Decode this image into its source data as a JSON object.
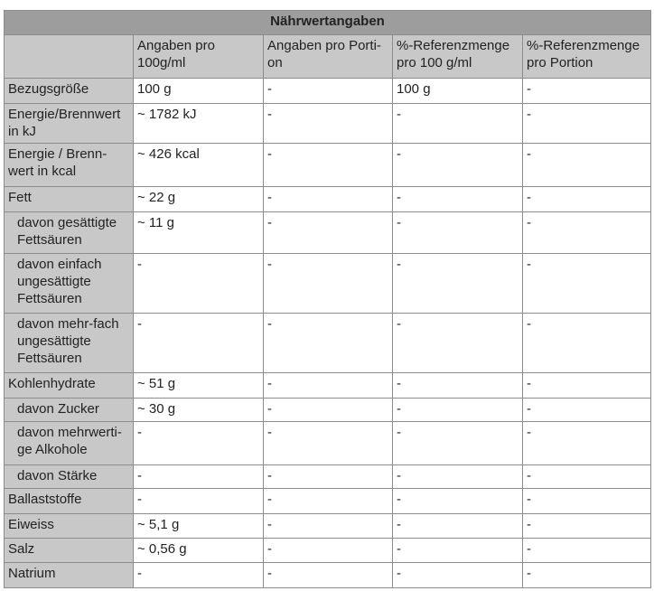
{
  "title": "Nährwertangaben",
  "columns": [
    "",
    "Angaben pro 100g/ml",
    "Angaben pro Porti-on",
    "%-Referenzmenge pro 100 g/ml",
    "%-Referenzmenge pro Portion"
  ],
  "rows": [
    {
      "label": "Bezugsgröße",
      "sub": false,
      "values": [
        "100 g",
        "-",
        "100 g",
        "-"
      ]
    },
    {
      "label": "Energie/Brennwert in kJ",
      "sub": false,
      "values": [
        "~ 1782 kJ",
        "-",
        "-",
        "-"
      ]
    },
    {
      "label": "Energie / Brenn-wert in kcal",
      "sub": false,
      "values": [
        "~ 426 kcal",
        "-",
        "-",
        "-"
      ]
    },
    {
      "label": "Fett",
      "sub": false,
      "values": [
        "~ 22 g",
        "-",
        "-",
        "-"
      ]
    },
    {
      "label": "davon gesättigte Fettsäuren",
      "sub": true,
      "values": [
        "~ 11 g",
        "-",
        "-",
        "-"
      ]
    },
    {
      "label": "davon einfach ungesättigte Fettsäuren",
      "sub": true,
      "values": [
        "-",
        "-",
        "-",
        "-"
      ]
    },
    {
      "label": "davon mehr-fach ungesättigte Fettsäuren",
      "sub": true,
      "values": [
        "-",
        "-",
        "-",
        "-"
      ]
    },
    {
      "label": "Kohlenhydrate",
      "sub": false,
      "values": [
        "~ 51 g",
        "-",
        "-",
        "-"
      ]
    },
    {
      "label": "davon Zucker",
      "sub": true,
      "values": [
        "~ 30 g",
        "-",
        "-",
        "-"
      ]
    },
    {
      "label": "davon mehrwerti-ge Alkohole",
      "sub": true,
      "values": [
        "-",
        "-",
        "-",
        "-"
      ]
    },
    {
      "label": "davon Stärke",
      "sub": true,
      "values": [
        "-",
        "-",
        "-",
        "-"
      ]
    },
    {
      "label": "Ballaststoffe",
      "sub": false,
      "values": [
        "-",
        "-",
        "-",
        "-"
      ]
    },
    {
      "label": "Eiweiss",
      "sub": false,
      "values": [
        "~ 5,1 g",
        "-",
        "-",
        "-"
      ]
    },
    {
      "label": "Salz",
      "sub": false,
      "values": [
        "~ 0,56 g",
        "-",
        "-",
        "-"
      ]
    },
    {
      "label": "Natrium",
      "sub": false,
      "values": [
        "-",
        "-",
        "-",
        "-"
      ]
    }
  ]
}
